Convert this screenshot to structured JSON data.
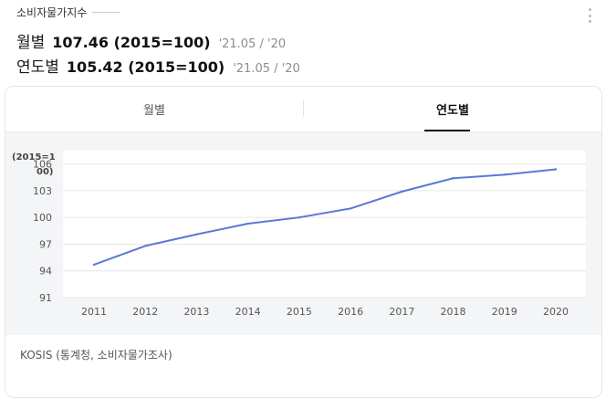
{
  "header": {
    "title": "소비자물가지수",
    "rows": [
      {
        "label": "월별",
        "value": "107.46 (2015=100)",
        "period": "'21.05 / '20"
      },
      {
        "label": "연도별",
        "value": "105.42 (2015=100)",
        "period": "'21.05 / '20"
      }
    ]
  },
  "tabs": [
    {
      "label": "월별",
      "active": false
    },
    {
      "label": "연도별",
      "active": true
    }
  ],
  "colors": {
    "line": "#5b78d6",
    "grid": "#e4e6ea",
    "plot_bg": "#f4f5f7",
    "active_tab": "#111111"
  },
  "chart_data": {
    "type": "line",
    "title": "",
    "ylabel_lines": [
      "(2015=1",
      "00)"
    ],
    "xlabel": "",
    "x": [
      "2011",
      "2012",
      "2013",
      "2014",
      "2015",
      "2016",
      "2017",
      "2018",
      "2019",
      "2020"
    ],
    "series": [
      {
        "values": [
          94.7,
          96.8,
          98.1,
          99.3,
          100.0,
          101.0,
          102.9,
          104.4,
          104.8,
          105.4
        ]
      }
    ],
    "yticks": [
      91,
      94,
      97,
      100,
      103,
      106
    ],
    "ylim": [
      91,
      107.5
    ],
    "grid": true,
    "legend": "none"
  },
  "source_text": "KOSIS (통계청, 소비자물가조사)"
}
